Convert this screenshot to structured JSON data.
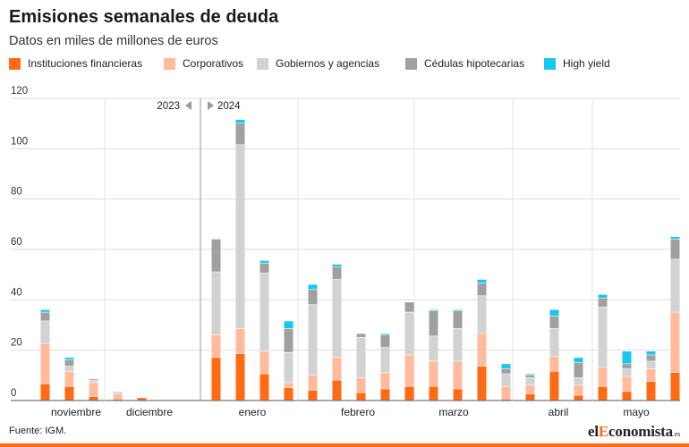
{
  "header": {
    "title": "Emisiones semanales de deuda",
    "subtitle": "Datos en miles de millones de euros"
  },
  "footer": {
    "source": "Fuente: IGM.",
    "logo_pre": "el",
    "logo_accent": "E",
    "logo_post": "conomista",
    "logo_tld": ".es"
  },
  "colors": {
    "financieras": "#ff6a13",
    "corporativos": "#ffbb9c",
    "gobiernos": "#d2d2d2",
    "cedulas": "#a0a0a0",
    "highyield": "#14c8f0"
  },
  "chart_data": {
    "type": "bar",
    "stacked": true,
    "ylim": [
      0,
      120
    ],
    "yticks": [
      0,
      20,
      40,
      60,
      80,
      100,
      120
    ],
    "grid": true,
    "legend_position": "top",
    "year_markers": [
      "2023",
      "2024"
    ],
    "month_labels": [
      "noviembre",
      "diciembre",
      "enero",
      "febrero",
      "marzo",
      "abril",
      "mayo"
    ],
    "series": [
      {
        "name": "Instituciones financieras",
        "color": "#ff6a13",
        "values": [
          6.5,
          5.5,
          1.5,
          0.5,
          1,
          0,
          0,
          17,
          18.5,
          10.5,
          5,
          4,
          8,
          3,
          4.5,
          5.5,
          5.5,
          4.5,
          13.5,
          0.5,
          2.5,
          11.5,
          2,
          5.5,
          3.5,
          7.5,
          11
        ]
      },
      {
        "name": "Corporativos",
        "color": "#ffbb9c",
        "values": [
          16,
          6,
          5.5,
          2,
          0,
          0,
          0,
          9,
          10,
          9,
          2,
          6,
          9,
          6,
          6.5,
          12.5,
          10,
          11,
          13,
          5,
          3.5,
          6,
          4,
          7.5,
          6,
          5,
          24
        ]
      },
      {
        "name": "Gobiernos y agencias",
        "color": "#d2d2d2",
        "values": [
          9,
          2,
          1,
          1,
          0,
          0,
          0,
          25,
          73,
          31,
          12,
          28,
          31,
          16,
          10,
          17,
          10,
          13,
          15,
          5,
          3,
          11,
          3,
          24,
          3,
          3,
          21
        ]
      },
      {
        "name": "Cédulas hipotecarias",
        "color": "#a0a0a0",
        "values": [
          3.5,
          2.5,
          0.5,
          0,
          0,
          0,
          0,
          13,
          8.5,
          4,
          9.5,
          6,
          5,
          1.5,
          5,
          4,
          10,
          7,
          5,
          2,
          1,
          5,
          6,
          3.5,
          2,
          2.5,
          8
        ]
      },
      {
        "name": "High yield",
        "color": "#14c8f0",
        "values": [
          1,
          1,
          0,
          0,
          0,
          0,
          0,
          0,
          1.5,
          1,
          3,
          2,
          1,
          0,
          0.5,
          0,
          0.5,
          0.5,
          1.5,
          2,
          0.5,
          2.5,
          2,
          1.5,
          5,
          1.5,
          1
        ]
      }
    ]
  }
}
